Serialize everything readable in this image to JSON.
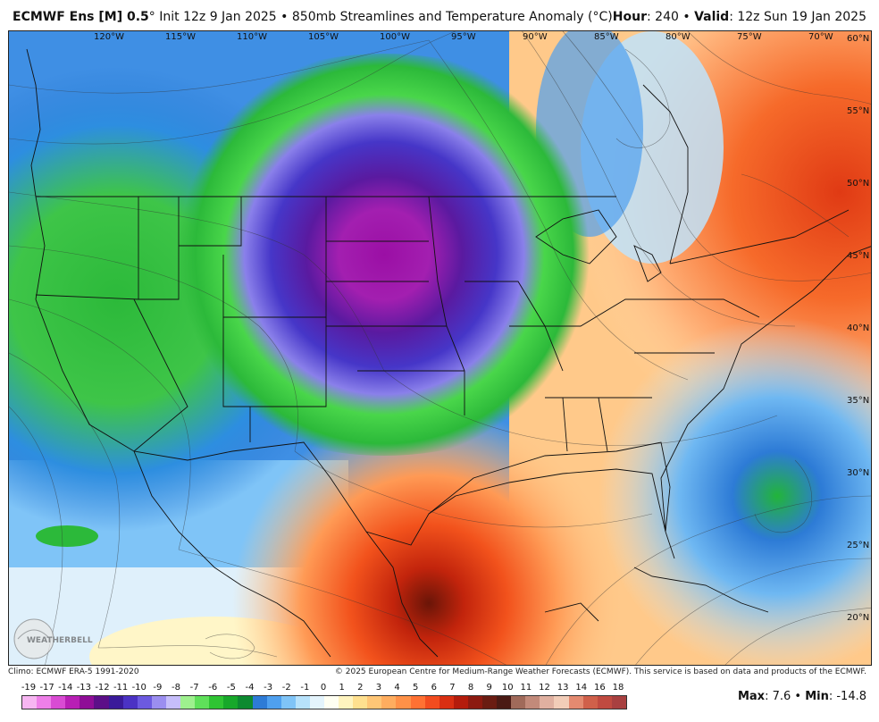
{
  "header": {
    "model": "ECMWF Ens [M] 0.5",
    "degree": "°",
    "init": " Init 12z 9 Jan 2025",
    "sep1": " • ",
    "product": "850mb Streamlines and Temperature Anomaly (°C)",
    "hour_label": "Hour",
    "hour_value": ": 240",
    "sep2": " • ",
    "valid_label": "Valid",
    "valid_value": ": 12z Sun 19 Jan 2025"
  },
  "map": {
    "longitudes": [
      "120°W",
      "115°W",
      "110°W",
      "105°W",
      "100°W",
      "95°W",
      "90°W",
      "85°W",
      "80°W",
      "75°W",
      "70°W"
    ],
    "latitudes": [
      "60°N",
      "55°N",
      "50°N",
      "45°N",
      "40°N",
      "35°N",
      "30°N",
      "25°N",
      "20°N"
    ],
    "logo": "WEATHERBELL"
  },
  "footer": {
    "climo": "Climo: ECMWF ERA-5 1991-2020",
    "copyright": "© 2025 European Centre for Medium-Range Weather Forecasts (ECMWF). This service is based on data and products of the ECMWF."
  },
  "colorbar": {
    "labels": [
      "-19",
      "-17",
      "-14",
      "-13",
      "-12",
      "-11",
      "-10",
      "-9",
      "-8",
      "-7",
      "-6",
      "-5",
      "-4",
      "-3",
      "-2",
      "-1",
      "0",
      "1",
      "2",
      "3",
      "4",
      "5",
      "6",
      "7",
      "8",
      "9",
      "10",
      "11",
      "12",
      "13",
      "14",
      "16",
      "18"
    ],
    "colors": [
      "#f7b6f2",
      "#ee7fe8",
      "#d94bd3",
      "#b81fb5",
      "#8f0d97",
      "#5c0f88",
      "#3a1a9a",
      "#4b32c4",
      "#6c5ae0",
      "#9b8ef0",
      "#c6befa",
      "#9ef08e",
      "#5fe05a",
      "#2fc433",
      "#17a82a",
      "#0d8a30",
      "#2d7bd6",
      "#4fa0ef",
      "#7fc4f7",
      "#b7e2fb",
      "#e4f4fc",
      "#fffff2",
      "#fff4bf",
      "#ffe08f",
      "#ffc676",
      "#ffad5f",
      "#ff9148",
      "#ff7133",
      "#f24c1f",
      "#d92f12",
      "#b41c0c",
      "#8c1a10",
      "#6a1c12",
      "#4a1a14",
      "#a06a5a",
      "#c28a7a",
      "#e0b0a0",
      "#f2cdb8",
      "#e48a70",
      "#d0604a",
      "#c04a40",
      "#a84040"
    ]
  },
  "stats": {
    "max_label": "Max",
    "max_value": ": 7.6",
    "sep": " • ",
    "min_label": "Min",
    "min_value": ": -14.8"
  }
}
